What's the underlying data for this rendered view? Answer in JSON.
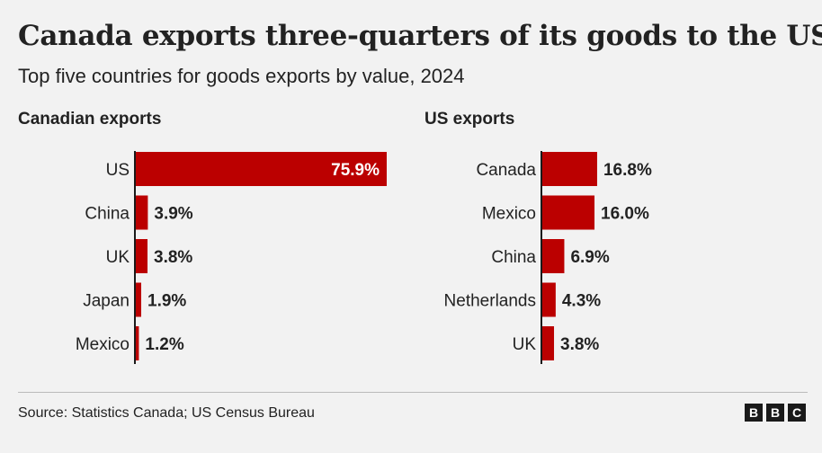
{
  "title": "Canada exports three-quarters of its goods to the US",
  "subtitle": "Top five countries for goods exports by value, 2024",
  "source": "Source: Statistics Canada; US Census Bureau",
  "logo": {
    "letters": [
      "B",
      "B",
      "C"
    ]
  },
  "colors": {
    "bar": "#bb0000",
    "axis": "#1a1a1a",
    "text": "#222222",
    "inside_label": "#ffffff"
  },
  "chart_data": [
    {
      "type": "bar",
      "orientation": "horizontal",
      "title": "Canadian exports",
      "categories": [
        "US",
        "China",
        "UK",
        "Japan",
        "Mexico"
      ],
      "values": [
        75.9,
        3.9,
        3.8,
        1.9,
        1.2
      ],
      "labels": [
        "75.9%",
        "3.9%",
        "3.8%",
        "1.9%",
        "1.2%"
      ],
      "unit": "%",
      "xlim": [
        0,
        75.9
      ],
      "grid": false,
      "legend": "none"
    },
    {
      "type": "bar",
      "orientation": "horizontal",
      "title": "US exports",
      "categories": [
        "Canada",
        "Mexico",
        "China",
        "Netherlands",
        "UK"
      ],
      "values": [
        16.8,
        16.0,
        6.9,
        4.3,
        3.8
      ],
      "labels": [
        "16.8%",
        "16.0%",
        "6.9%",
        "4.3%",
        "3.8%"
      ],
      "unit": "%",
      "xlim": [
        0,
        75.9
      ],
      "grid": false,
      "legend": "none"
    }
  ]
}
